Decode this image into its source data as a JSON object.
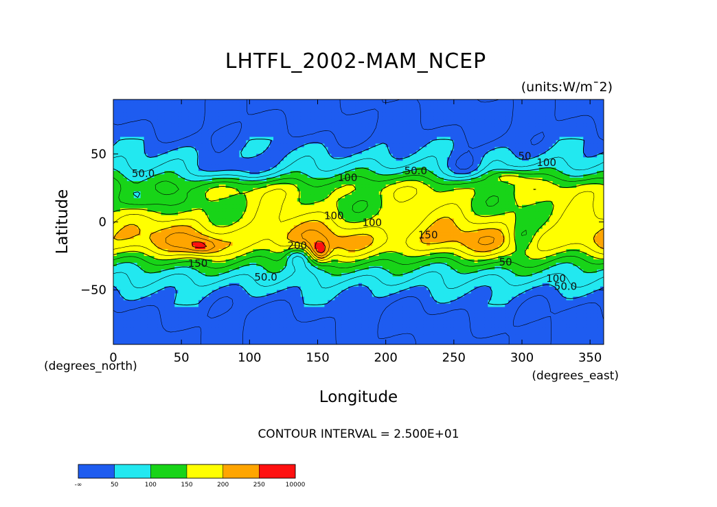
{
  "chart_data": {
    "type": "heatmap",
    "title": "LHTFL_2002-MAM_NCEP",
    "units_label": "(units:W/m¯2)",
    "xlabel": "Longitude",
    "ylabel": "Latitude",
    "xunits": "(degrees_east)",
    "yunits": "(degrees_north)",
    "xlim": [
      0,
      360
    ],
    "ylim": [
      -90,
      90
    ],
    "xticks": [
      {
        "value": 0,
        "label": "0"
      },
      {
        "value": 50,
        "label": "50"
      },
      {
        "value": 100,
        "label": "100"
      },
      {
        "value": 150,
        "label": "150"
      },
      {
        "value": 200,
        "label": "200"
      },
      {
        "value": 250,
        "label": "250"
      },
      {
        "value": 300,
        "label": "300"
      },
      {
        "value": 350,
        "label": "350"
      }
    ],
    "yticks": [
      {
        "value": 50,
        "label": "50"
      },
      {
        "value": 0,
        "label": "0"
      },
      {
        "value": -50,
        "label": "−50"
      }
    ],
    "contour_interval_text": "CONTOUR INTERVAL = 2.500E+01",
    "contour_labels": [
      {
        "text": "50.0",
        "lon": 22,
        "lat": 33
      },
      {
        "text": "50.0",
        "lon": 222,
        "lat": 35
      },
      {
        "text": "100",
        "lon": 172,
        "lat": 30
      },
      {
        "text": "100",
        "lon": 162,
        "lat": 2
      },
      {
        "text": "100",
        "lon": 190,
        "lat": -3
      },
      {
        "text": "150",
        "lon": 231,
        "lat": -12
      },
      {
        "text": "150",
        "lon": 62,
        "lat": -33
      },
      {
        "text": "200",
        "lon": 135,
        "lat": -20
      },
      {
        "text": "50.0",
        "lon": 112,
        "lat": -43
      },
      {
        "text": "50",
        "lon": 302,
        "lat": 46
      },
      {
        "text": "100",
        "lon": 318,
        "lat": 41
      },
      {
        "text": "100",
        "lon": 325,
        "lat": -44
      },
      {
        "text": "50.0",
        "lon": 332,
        "lat": -50
      },
      {
        "text": "50",
        "lon": 288,
        "lat": -32
      }
    ],
    "colorbar": {
      "bins": [
        {
          "range": [
            "-∞",
            "50"
          ],
          "color": "#1e5cf0"
        },
        {
          "range": [
            "50",
            "100"
          ],
          "color": "#22e8f0"
        },
        {
          "range": [
            "100",
            "150"
          ],
          "color": "#18d418"
        },
        {
          "range": [
            "150",
            "200"
          ],
          "color": "#ffff00"
        },
        {
          "range": [
            "200",
            "250"
          ],
          "color": "#ffa500"
        },
        {
          "range": [
            "250",
            "10000"
          ],
          "color": "#ff1010"
        }
      ],
      "tick_labels": [
        "-∞",
        "50",
        "100",
        "150",
        "200",
        "250",
        "10000"
      ]
    }
  }
}
